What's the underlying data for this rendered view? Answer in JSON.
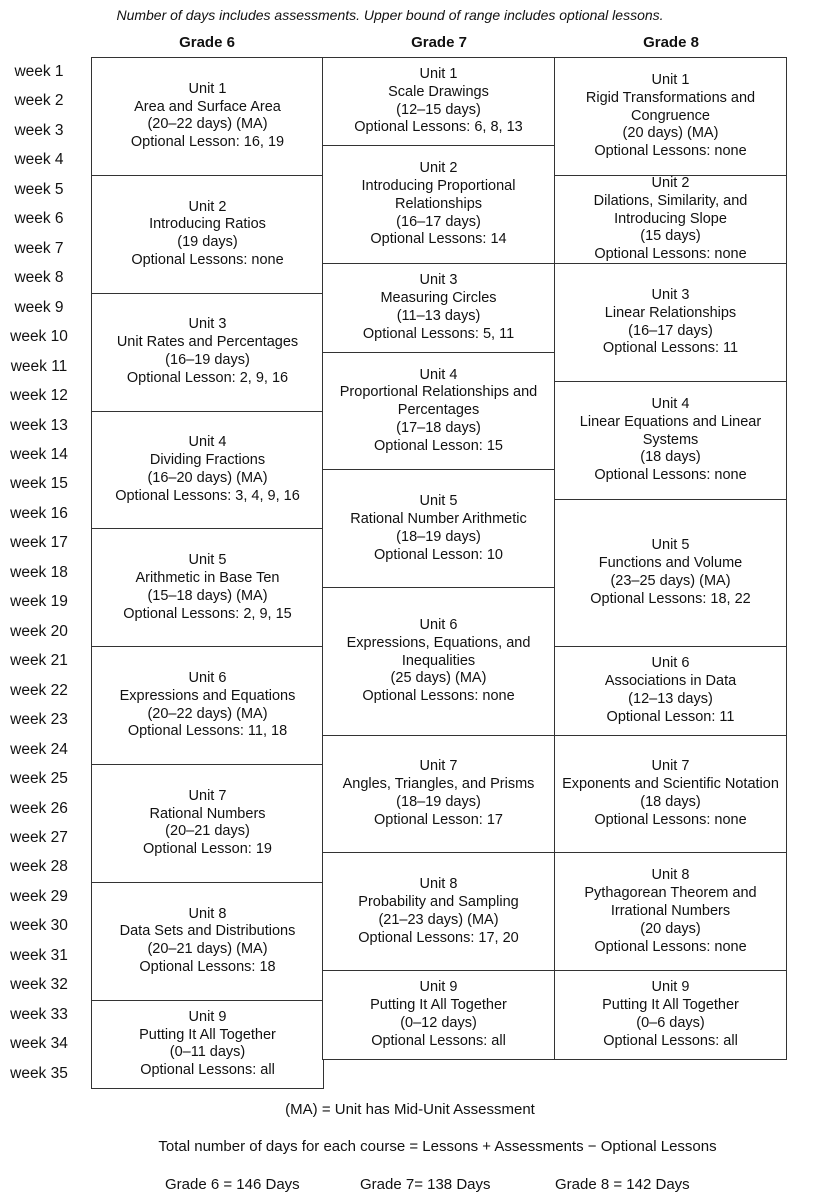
{
  "note": "Number of days includes assessments. Upper bound of range includes optional lessons.",
  "grades": [
    {
      "title": "Grade 6",
      "units": [
        {
          "unit": "Unit 1",
          "lines": [
            "Area and Surface Area",
            "(20–22 days) (MA)",
            "Optional Lesson: 16, 19"
          ],
          "weeks": 4
        },
        {
          "unit": "Unit 2",
          "lines": [
            "Introducing Ratios",
            "(19 days)",
            "Optional Lessons: none"
          ],
          "weeks": 4
        },
        {
          "unit": "Unit 3",
          "lines": [
            "Unit Rates and Percentages",
            "(16–19 days)",
            "Optional Lesson: 2, 9, 16"
          ],
          "weeks": 4
        },
        {
          "unit": "Unit 4",
          "lines": [
            "Dividing Fractions",
            "(16–20 days) (MA)",
            "Optional Lessons: 3, 4, 9, 16"
          ],
          "weeks": 4
        },
        {
          "unit": "Unit 5",
          "lines": [
            "Arithmetic in Base Ten",
            "(15–18 days) (MA)",
            "Optional Lessons: 2, 9, 15"
          ],
          "weeks": 4
        },
        {
          "unit": "Unit 6",
          "lines": [
            "Expressions and Equations",
            "(20–22 days) (MA)",
            "Optional Lessons: 11, 18"
          ],
          "weeks": 4
        },
        {
          "unit": "Unit 7",
          "lines": [
            "Rational Numbers",
            "(20–21 days)",
            "Optional Lesson: 19"
          ],
          "weeks": 4
        },
        {
          "unit": "Unit 8",
          "lines": [
            "Data Sets and Distributions",
            "(20–21 days) (MA)",
            "Optional Lessons: 18"
          ],
          "weeks": 4
        },
        {
          "unit": "Unit 9",
          "lines": [
            "Putting It All Together",
            "(0–11 days)",
            "Optional Lessons: all"
          ],
          "weeks": 3
        }
      ]
    },
    {
      "title": "Grade 7",
      "units": [
        {
          "unit": "Unit 1",
          "lines": [
            "Scale Drawings",
            "(12–15 days)",
            "Optional Lessons: 6, 8, 13"
          ],
          "weeks": 3
        },
        {
          "unit": "Unit 2",
          "lines": [
            "Introducing Proportional Relationships",
            "(16–17 days)",
            "Optional Lessons: 14"
          ],
          "weeks": 4
        },
        {
          "unit": "Unit 3",
          "lines": [
            "Measuring Circles",
            "(11–13 days)",
            "Optional Lessons: 5, 11"
          ],
          "weeks": 3
        },
        {
          "unit": "Unit 4",
          "lines": [
            "Proportional Relationships and Percentages",
            "(17–18 days)",
            "Optional Lesson: 15"
          ],
          "weeks": 4
        },
        {
          "unit": "Unit 5",
          "lines": [
            "Rational Number Arithmetic",
            "(18–19 days)",
            "Optional Lesson: 10"
          ],
          "weeks": 4
        },
        {
          "unit": "Unit 6",
          "lines": [
            "Expressions, Equations, and Inequalities",
            "(25 days) (MA)",
            "Optional Lessons: none"
          ],
          "weeks": 5
        },
        {
          "unit": "Unit 7",
          "lines": [
            "Angles, Triangles, and Prisms",
            "(18–19 days)",
            "Optional Lesson: 17"
          ],
          "weeks": 4
        },
        {
          "unit": "Unit 8",
          "lines": [
            "Probability and Sampling",
            "(21–23 days) (MA)",
            "Optional Lessons: 17, 20"
          ],
          "weeks": 4
        },
        {
          "unit": "Unit 9",
          "lines": [
            "Putting It All Together",
            "(0–12 days)",
            "Optional Lessons: all"
          ],
          "weeks": 3
        }
      ]
    },
    {
      "title": "Grade 8",
      "units": [
        {
          "unit": "Unit 1",
          "lines": [
            "Rigid Transformations and Congruence",
            "(20 days) (MA)",
            "Optional Lessons: none"
          ],
          "weeks": 4
        },
        {
          "unit": "Unit 2",
          "lines": [
            "Dilations, Similarity, and Introducing Slope",
            "(15 days)",
            "Optional Lessons: none"
          ],
          "weeks": 3
        },
        {
          "unit": "Unit 3",
          "lines": [
            "Linear Relationships",
            "(16–17 days)",
            "Optional Lessons: 11"
          ],
          "weeks": 4
        },
        {
          "unit": "Unit 4",
          "lines": [
            "Linear Equations and Linear Systems",
            "(18 days)",
            "Optional Lessons: none"
          ],
          "weeks": 4
        },
        {
          "unit": "Unit 5",
          "lines": [
            "Functions and Volume",
            "(23–25 days) (MA)",
            "Optional Lessons: 18, 22"
          ],
          "weeks": 5
        },
        {
          "unit": "Unit 6",
          "lines": [
            "Associations in Data",
            "(12–13 days)",
            "Optional Lesson: 11"
          ],
          "weeks": 3
        },
        {
          "unit": "Unit 7",
          "lines": [
            "Exponents and Scientific Notation",
            "(18 days)",
            "Optional Lessons: none"
          ],
          "weeks": 4
        },
        {
          "unit": "Unit 8",
          "lines": [
            "Pythagorean Theorem and Irrational Numbers",
            "(20 days)",
            "Optional Lessons: none"
          ],
          "weeks": 4
        },
        {
          "unit": "Unit 9",
          "lines": [
            "Putting It All Together",
            "(0–6 days)",
            "Optional Lessons: all"
          ],
          "weeks": 3
        }
      ]
    }
  ],
  "weeks": [
    "week 1",
    "week 2",
    "week 3",
    "week 4",
    "week 5",
    "week 6",
    "week 7",
    "week 8",
    "week 9",
    "week 10",
    "week 11",
    "week 12",
    "week 13",
    "week 14",
    "week 15",
    "week 16",
    "week 17",
    "week 18",
    "week 19",
    "week 20",
    "week 21",
    "week 22",
    "week 23",
    "week 24",
    "week 25",
    "week 26",
    "week 27",
    "week 28",
    "week 29",
    "week 30",
    "week 31",
    "week 32",
    "week 33",
    "week 34",
    "week 35"
  ],
  "footer": {
    "legend": "(MA) = Unit has Mid-Unit Assessment",
    "formula": "Total number of days for each course = Lessons + Assessments − Optional Lessons",
    "totals": [
      "Grade 6 = 146 Days",
      "Grade 7= 138 Days",
      "Grade 8 = 142 Days"
    ]
  }
}
